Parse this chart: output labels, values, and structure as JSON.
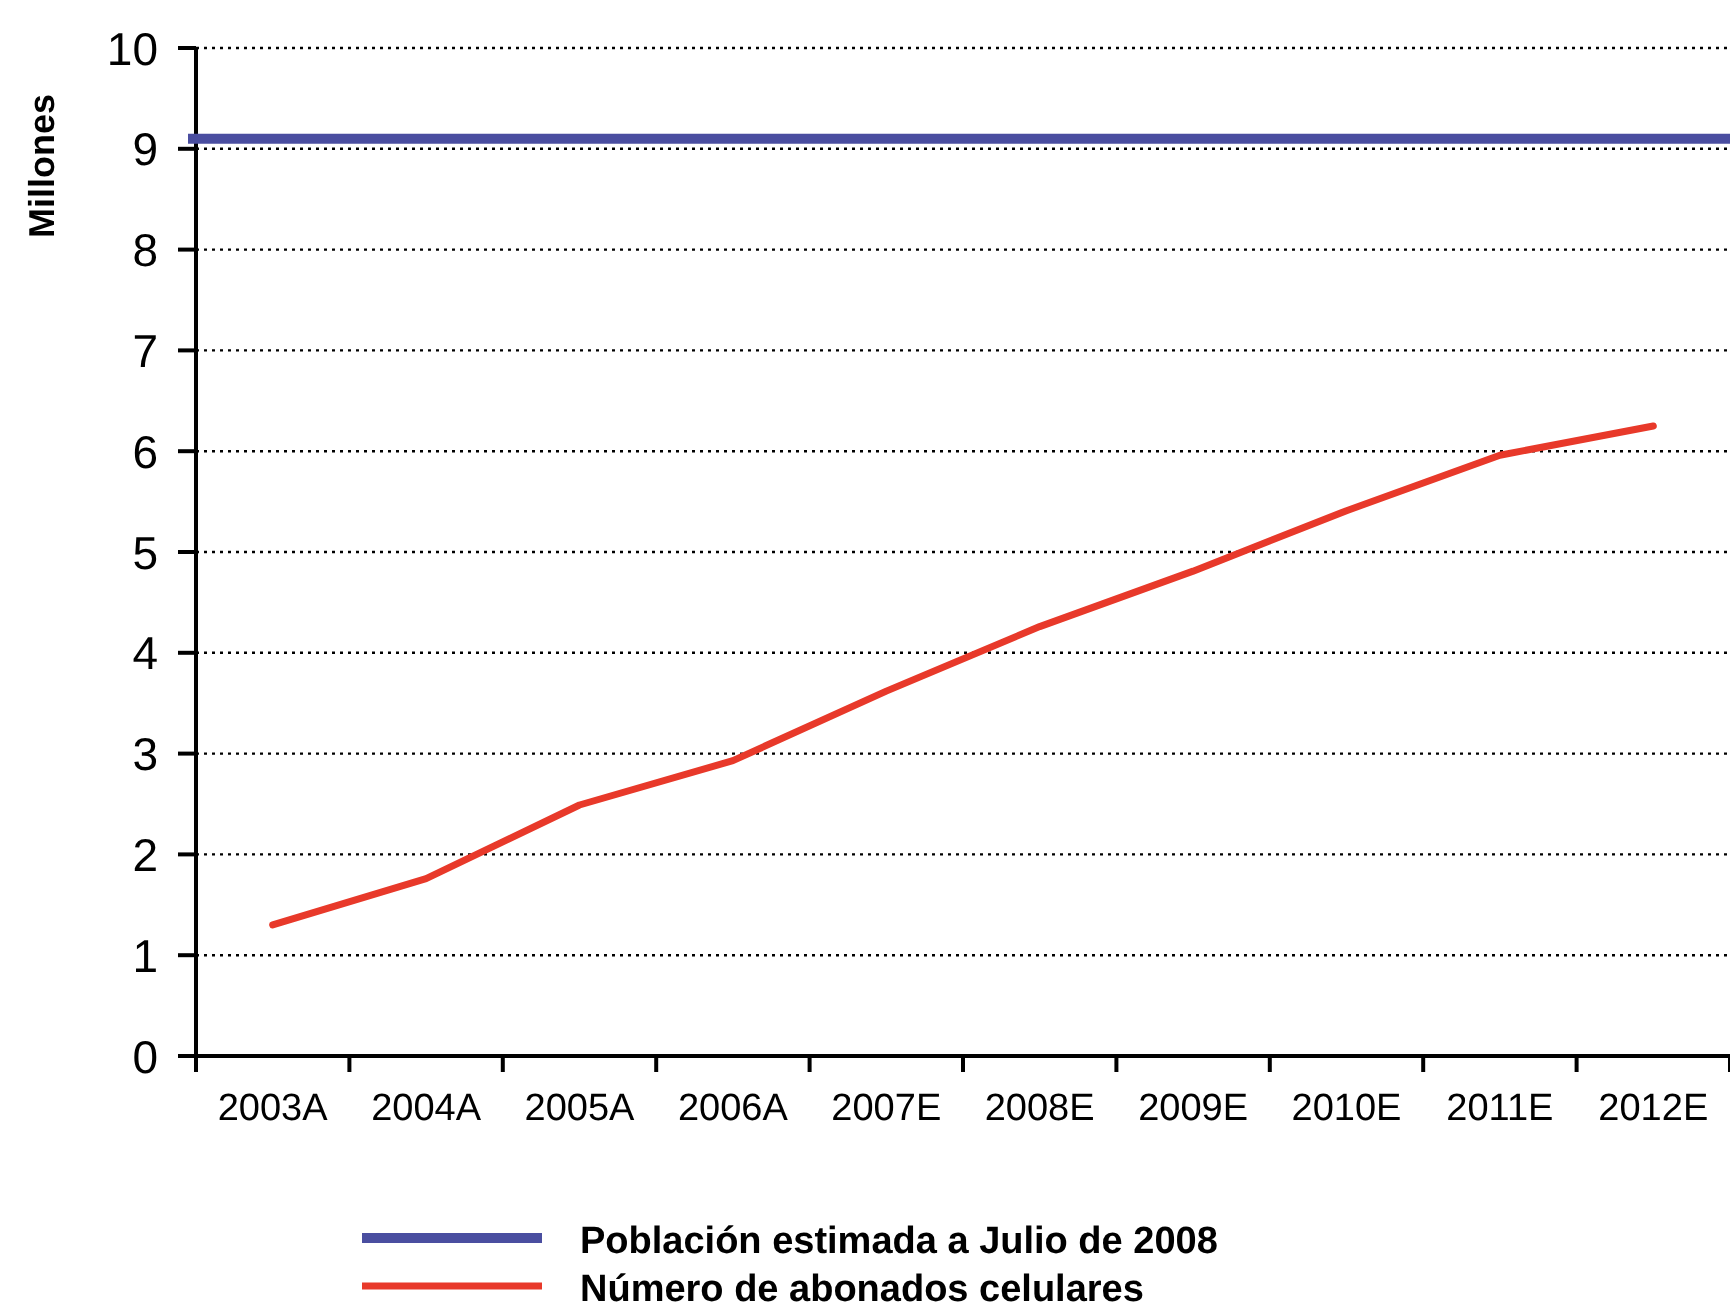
{
  "chart_data": {
    "type": "line",
    "ylabel": "Millones",
    "categories": [
      "2003A",
      "2004A",
      "2005A",
      "2006A",
      "2007E",
      "2008E",
      "2009E",
      "2010E",
      "2011E",
      "2012E"
    ],
    "series": [
      {
        "name": "Número de abonados celulares",
        "color": "#e8392a",
        "values": [
          1.3,
          1.76,
          2.49,
          2.93,
          3.62,
          4.26,
          4.81,
          5.41,
          5.96,
          6.25
        ]
      }
    ],
    "ref_lines": [
      {
        "axis": "y",
        "value": 9.1,
        "label": "Población estimada a Julio de 2008",
        "color": "#4a4ea0"
      }
    ],
    "ylim": [
      0,
      10
    ],
    "yticks": [
      0,
      1,
      2,
      3,
      4,
      5,
      6,
      7,
      8,
      9,
      10
    ],
    "grid": "y",
    "legend": "bottom",
    "marker": "none",
    "line_style": "solid"
  }
}
